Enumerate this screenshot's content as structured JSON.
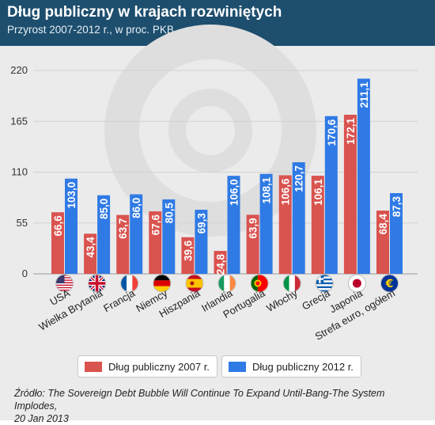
{
  "header": {
    "title": "Dług publiczny w krajach rozwiniętych",
    "subtitle": "Przyrost 2007-2012 r., w proc. PKB"
  },
  "chart_data": {
    "type": "bar",
    "title": "Dług publiczny w krajach rozwiniętych",
    "subtitle": "Przyrost 2007-2012 r., w proc. PKB",
    "categories": [
      "USA",
      "Wielka Brytania",
      "Francja",
      "Niemcy",
      "Hiszpania",
      "Irlandia",
      "Portugalia",
      "Włochy",
      "Grecja",
      "Japonia",
      "Strefa euro, ogółem"
    ],
    "series": [
      {
        "name": "Dług publiczny 2007 r.",
        "values": [
          66.6,
          43.4,
          63.7,
          67.6,
          39.6,
          24.8,
          63.9,
          106.6,
          106.1,
          172.1,
          68.4
        ],
        "labels": [
          "66,6",
          "43,4",
          "63,7",
          "67,6",
          "39,6",
          "24,8",
          "63,9",
          "106,6",
          "106,1",
          "172,1",
          "68,4"
        ],
        "color": "#d9534f"
      },
      {
        "name": "Dług publiczny 2012 r.",
        "values": [
          103.0,
          85.0,
          86.0,
          80.5,
          69.3,
          106.0,
          108.1,
          120.7,
          170.6,
          211.1,
          87.3
        ],
        "labels": [
          "103,0",
          "85,0",
          "86,0",
          "80,5",
          "69,3",
          "106,0",
          "108,1",
          "120,7",
          "170,6",
          "211,1",
          "87,3"
        ],
        "color": "#2f7ae5"
      }
    ],
    "yticks": [
      "0",
      "55",
      "110",
      "165",
      "220"
    ],
    "ytick_values": [
      0,
      55,
      110,
      165,
      220
    ],
    "ylim": [
      0,
      230
    ],
    "grid": true,
    "legend": "bottom"
  },
  "flags": [
    "flag-usa-icon",
    "flag-uk-icon",
    "flag-france-icon",
    "flag-germany-icon",
    "flag-spain-icon",
    "flag-ireland-icon",
    "flag-portugal-icon",
    "flag-italy-icon",
    "flag-greece-icon",
    "flag-japan-icon",
    "flag-eu-euro-icon"
  ],
  "legend": {
    "item_2007": "Dług publiczny 2007 r.",
    "item_2012": "Dług publiczny 2012 r."
  },
  "source": {
    "line1": "Źródło: The Sovereign Debt Bubble Will Continue To Expand Until-Bang-The System Implodes,",
    "line2": "20 Jan 2013"
  }
}
